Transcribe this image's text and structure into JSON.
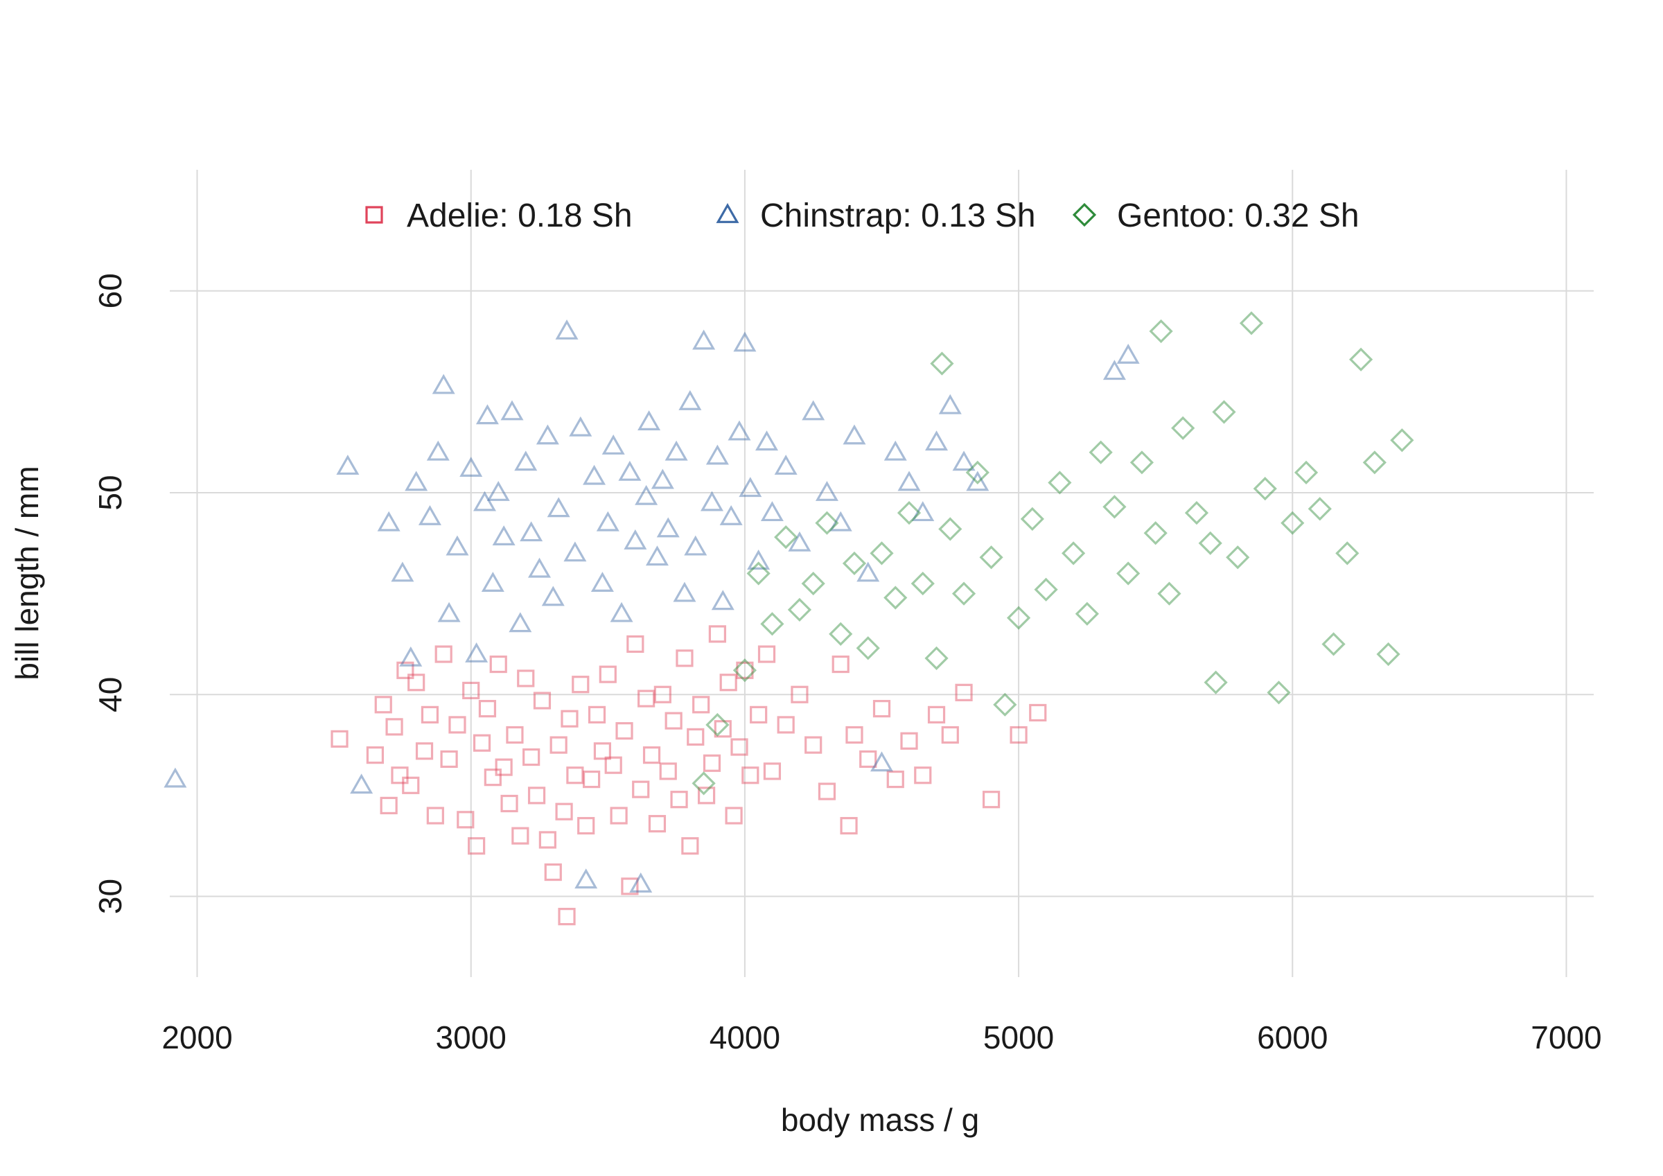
{
  "chart_data": {
    "type": "scatter",
    "title": "",
    "xlabel": "body mass / g",
    "ylabel": "bill length / mm",
    "xlim": [
      1900,
      7100
    ],
    "ylim": [
      26,
      66
    ],
    "xticks": [
      2000,
      3000,
      4000,
      5000,
      6000,
      7000
    ],
    "xtick_labels": [
      "2000",
      "3000",
      "4000",
      "5000",
      "6000",
      "7000"
    ],
    "yticks": [
      30,
      40,
      50,
      60
    ],
    "ytick_labels": [
      "30",
      "40",
      "50",
      "60"
    ],
    "grid": true,
    "legend_position": "top-center",
    "series": [
      {
        "name": "Adelie: 0.18 Sh",
        "marker": "square",
        "color": "#e0445b",
        "x": [
          2520,
          2650,
          2680,
          2700,
          2720,
          2740,
          2760,
          2780,
          2800,
          2830,
          2850,
          2870,
          2900,
          2920,
          2950,
          2980,
          3000,
          3020,
          3040,
          3060,
          3080,
          3100,
          3120,
          3140,
          3160,
          3180,
          3200,
          3220,
          3240,
          3260,
          3280,
          3300,
          3320,
          3340,
          3350,
          3360,
          3380,
          3400,
          3420,
          3440,
          3460,
          3480,
          3500,
          3520,
          3540,
          3560,
          3580,
          3600,
          3620,
          3640,
          3660,
          3680,
          3700,
          3720,
          3740,
          3760,
          3780,
          3800,
          3820,
          3840,
          3860,
          3880,
          3900,
          3920,
          3940,
          3960,
          3980,
          4000,
          4020,
          4050,
          4080,
          4100,
          4150,
          4200,
          4250,
          4300,
          4350,
          4380,
          4400,
          4450,
          4500,
          4550,
          4600,
          4650,
          4700,
          4750,
          4800,
          4900,
          5000,
          5070
        ],
        "y": [
          37.8,
          37.0,
          39.5,
          34.5,
          38.4,
          36.0,
          41.2,
          35.5,
          40.6,
          37.2,
          39.0,
          34.0,
          42.0,
          36.8,
          38.5,
          33.8,
          40.2,
          32.5,
          37.6,
          39.3,
          35.9,
          41.5,
          36.4,
          34.6,
          38.0,
          33.0,
          40.8,
          36.9,
          35.0,
          39.7,
          32.8,
          31.2,
          37.5,
          34.2,
          29.0,
          38.8,
          36.0,
          40.5,
          33.5,
          35.8,
          39.0,
          37.2,
          41.0,
          36.5,
          34.0,
          38.2,
          30.5,
          42.5,
          35.3,
          39.8,
          37.0,
          33.6,
          40.0,
          36.2,
          38.7,
          34.8,
          41.8,
          32.5,
          37.9,
          39.5,
          35.0,
          36.6,
          43.0,
          38.3,
          40.6,
          34.0,
          37.4,
          41.2,
          36.0,
          39.0,
          42.0,
          36.2,
          38.5,
          40.0,
          37.5,
          35.2,
          41.5,
          33.5,
          38.0,
          36.8,
          39.3,
          35.8,
          37.7,
          36.0,
          39.0,
          38.0,
          40.1,
          34.8,
          38.0,
          39.1
        ]
      },
      {
        "name": "Chinstrap: 0.13 Sh",
        "marker": "triangle",
        "color": "#3d6aa6",
        "x": [
          1920,
          2550,
          2600,
          2700,
          2750,
          2780,
          2800,
          2850,
          2880,
          2900,
          2920,
          2950,
          3000,
          3020,
          3050,
          3060,
          3080,
          3100,
          3120,
          3150,
          3180,
          3200,
          3220,
          3250,
          3280,
          3300,
          3320,
          3350,
          3380,
          3400,
          3420,
          3450,
          3480,
          3500,
          3520,
          3550,
          3580,
          3600,
          3620,
          3640,
          3650,
          3680,
          3700,
          3720,
          3750,
          3780,
          3800,
          3820,
          3850,
          3880,
          3900,
          3920,
          3950,
          3980,
          4000,
          4020,
          4050,
          4080,
          4100,
          4150,
          4200,
          4250,
          4300,
          4350,
          4400,
          4450,
          4500,
          4550,
          4600,
          4650,
          4700,
          4750,
          4800,
          4850,
          5350,
          5400
        ],
        "y": [
          35.8,
          51.3,
          35.5,
          48.5,
          46.0,
          41.8,
          50.5,
          48.8,
          52.0,
          55.3,
          44.0,
          47.3,
          51.2,
          42.0,
          49.5,
          53.8,
          45.5,
          50.0,
          47.8,
          54.0,
          43.5,
          51.5,
          48.0,
          46.2,
          52.8,
          44.8,
          49.2,
          58.0,
          47.0,
          53.2,
          30.8,
          50.8,
          45.5,
          48.5,
          52.3,
          44.0,
          51.0,
          47.6,
          30.6,
          49.8,
          53.5,
          46.8,
          50.6,
          48.2,
          52.0,
          45.0,
          54.5,
          47.3,
          57.5,
          49.5,
          51.8,
          44.6,
          48.8,
          53.0,
          57.4,
          50.2,
          46.6,
          52.5,
          49.0,
          51.3,
          47.5,
          54.0,
          50.0,
          48.5,
          52.8,
          46.0,
          36.6,
          52.0,
          50.5,
          49.0,
          52.5,
          54.3,
          51.5,
          50.5,
          56.0,
          56.8
        ]
      },
      {
        "name": "Gentoo: 0.32 Sh",
        "marker": "diamond",
        "color": "#2e8b3a",
        "x": [
          3850,
          3900,
          4000,
          4050,
          4100,
          4150,
          4200,
          4250,
          4300,
          4350,
          4400,
          4450,
          4500,
          4550,
          4600,
          4650,
          4700,
          4720,
          4750,
          4800,
          4850,
          4900,
          4950,
          5000,
          5050,
          5100,
          5150,
          5200,
          5250,
          5300,
          5350,
          5400,
          5450,
          5500,
          5520,
          5550,
          5600,
          5650,
          5700,
          5720,
          5750,
          5800,
          5850,
          5900,
          5950,
          6000,
          6050,
          6100,
          6150,
          6200,
          6250,
          6300,
          6350,
          6400
        ],
        "y": [
          35.6,
          38.5,
          41.2,
          46.0,
          43.5,
          47.8,
          44.2,
          45.5,
          48.5,
          43.0,
          46.5,
          42.3,
          47.0,
          44.8,
          49.0,
          45.5,
          41.8,
          56.4,
          48.2,
          45.0,
          51.0,
          46.8,
          39.5,
          43.8,
          48.7,
          45.2,
          50.5,
          47.0,
          44.0,
          52.0,
          49.3,
          46.0,
          51.5,
          48.0,
          58.0,
          45.0,
          53.2,
          49.0,
          47.5,
          40.6,
          54.0,
          46.8,
          58.4,
          50.2,
          40.1,
          48.5,
          51.0,
          49.2,
          42.5,
          47.0,
          56.6,
          51.5,
          42.0,
          52.6
        ]
      }
    ]
  }
}
